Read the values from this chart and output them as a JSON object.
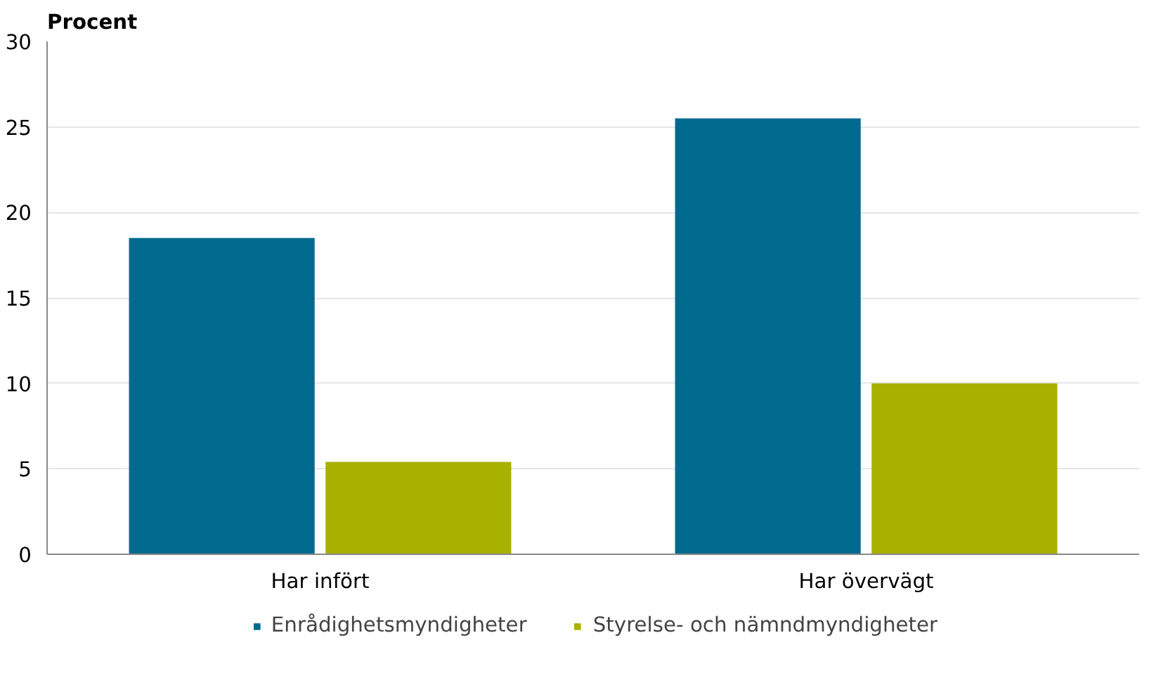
{
  "chart_data": {
    "type": "bar",
    "ylabel": "Procent",
    "categories": [
      "Har infört",
      "Har övervägt"
    ],
    "series": [
      {
        "name": "Enrådighetsmyndigheter",
        "color": "#006a8e",
        "values": [
          18.5,
          25.5
        ]
      },
      {
        "name": "Styrelse- och nämndmyndigheter",
        "color": "#a8b000",
        "values": [
          5.4,
          10.0
        ]
      }
    ],
    "ylim": [
      0,
      30
    ],
    "yticks": [
      0,
      5,
      10,
      15,
      20,
      25,
      30
    ],
    "grid": "y",
    "legend": "bottom"
  }
}
